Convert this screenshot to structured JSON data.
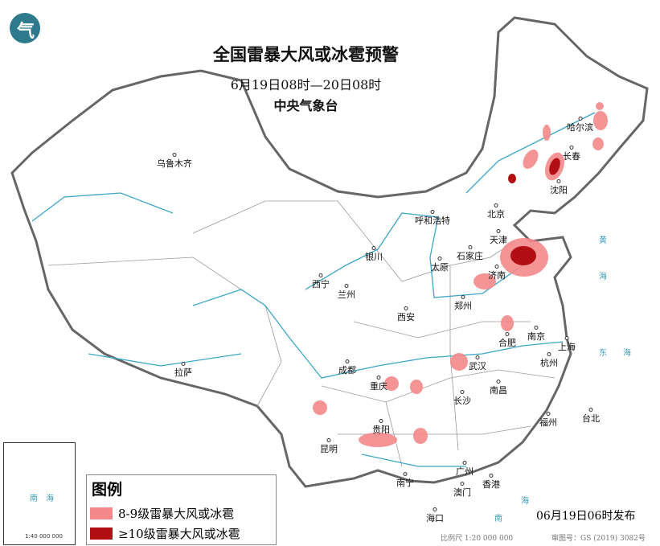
{
  "header": {
    "title": "全国雷暴大风或冰雹预警",
    "period": "6月19日08时—20日08时",
    "issuer": "中央气象台",
    "logo_text": "气"
  },
  "colors": {
    "level_8_9": "#f4888a",
    "level_10": "#b20f14",
    "river": "#3aa6c8",
    "border": "#666666",
    "country": "#555555"
  },
  "cities": [
    "乌鲁木齐",
    "哈尔滨",
    "长春",
    "沈阳",
    "北京",
    "天津",
    "呼和浩特",
    "石家庄",
    "太原",
    "银川",
    "济南",
    "西宁",
    "兰州",
    "郑州",
    "西安",
    "合肥",
    "南京",
    "上海",
    "武汉",
    "杭州",
    "成都",
    "拉萨",
    "重庆",
    "长沙",
    "南昌",
    "福州",
    "台北",
    "贵阳",
    "昆明",
    "南宁",
    "广州",
    "香港",
    "澳门",
    "海口"
  ],
  "seas": [
    "黄",
    "海",
    "东",
    "海",
    "南",
    "海"
  ],
  "inset": {
    "labels": [
      "南",
      "海"
    ],
    "scale": "1:40 000 000"
  },
  "legend": {
    "title": "图例",
    "items": [
      {
        "label": "8-9级雷暴大风或冰雹",
        "color": "#f4888a"
      },
      {
        "label": "≥10级雷暴大风或冰雹",
        "color": "#b20f14"
      }
    ]
  },
  "footer": {
    "issue_time": "06月19日06时发布",
    "scale": "比例尺 1:20 000 000",
    "map_no": "审图号：GS (2019) 3082号"
  }
}
